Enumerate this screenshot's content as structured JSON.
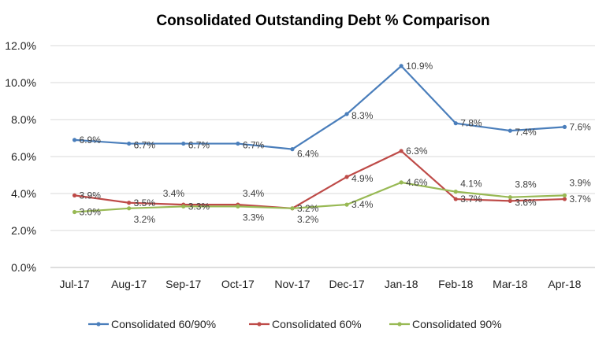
{
  "chart_data": {
    "type": "line",
    "title": "Consolidated Outstanding Debt % Comparison",
    "xlabel": "",
    "ylabel": "",
    "ylim": [
      0,
      12
    ],
    "yticks": [
      "0.0%",
      "2.0%",
      "4.0%",
      "6.0%",
      "8.0%",
      "10.0%",
      "12.0%"
    ],
    "grid": true,
    "legend_position": "bottom",
    "categories": [
      "Jul-17",
      "Aug-17",
      "Sep-17",
      "Oct-17",
      "Nov-17",
      "Dec-17",
      "Jan-18",
      "Feb-18",
      "Mar-18",
      "Apr-18"
    ],
    "series": [
      {
        "name": "Consolidated 60/90%",
        "color": "#4A7EBB",
        "values": [
          6.9,
          6.7,
          6.7,
          6.7,
          6.4,
          8.3,
          10.9,
          7.8,
          7.4,
          7.6
        ]
      },
      {
        "name": "Consolidated 60%",
        "color": "#BE4B48",
        "values": [
          3.9,
          3.5,
          3.4,
          3.4,
          3.2,
          4.9,
          6.3,
          3.7,
          3.6,
          3.7
        ]
      },
      {
        "name": "Consolidated 90%",
        "color": "#98B954",
        "values": [
          3.0,
          3.2,
          3.3,
          3.3,
          3.2,
          3.4,
          4.6,
          4.1,
          3.8,
          3.9
        ]
      }
    ]
  }
}
